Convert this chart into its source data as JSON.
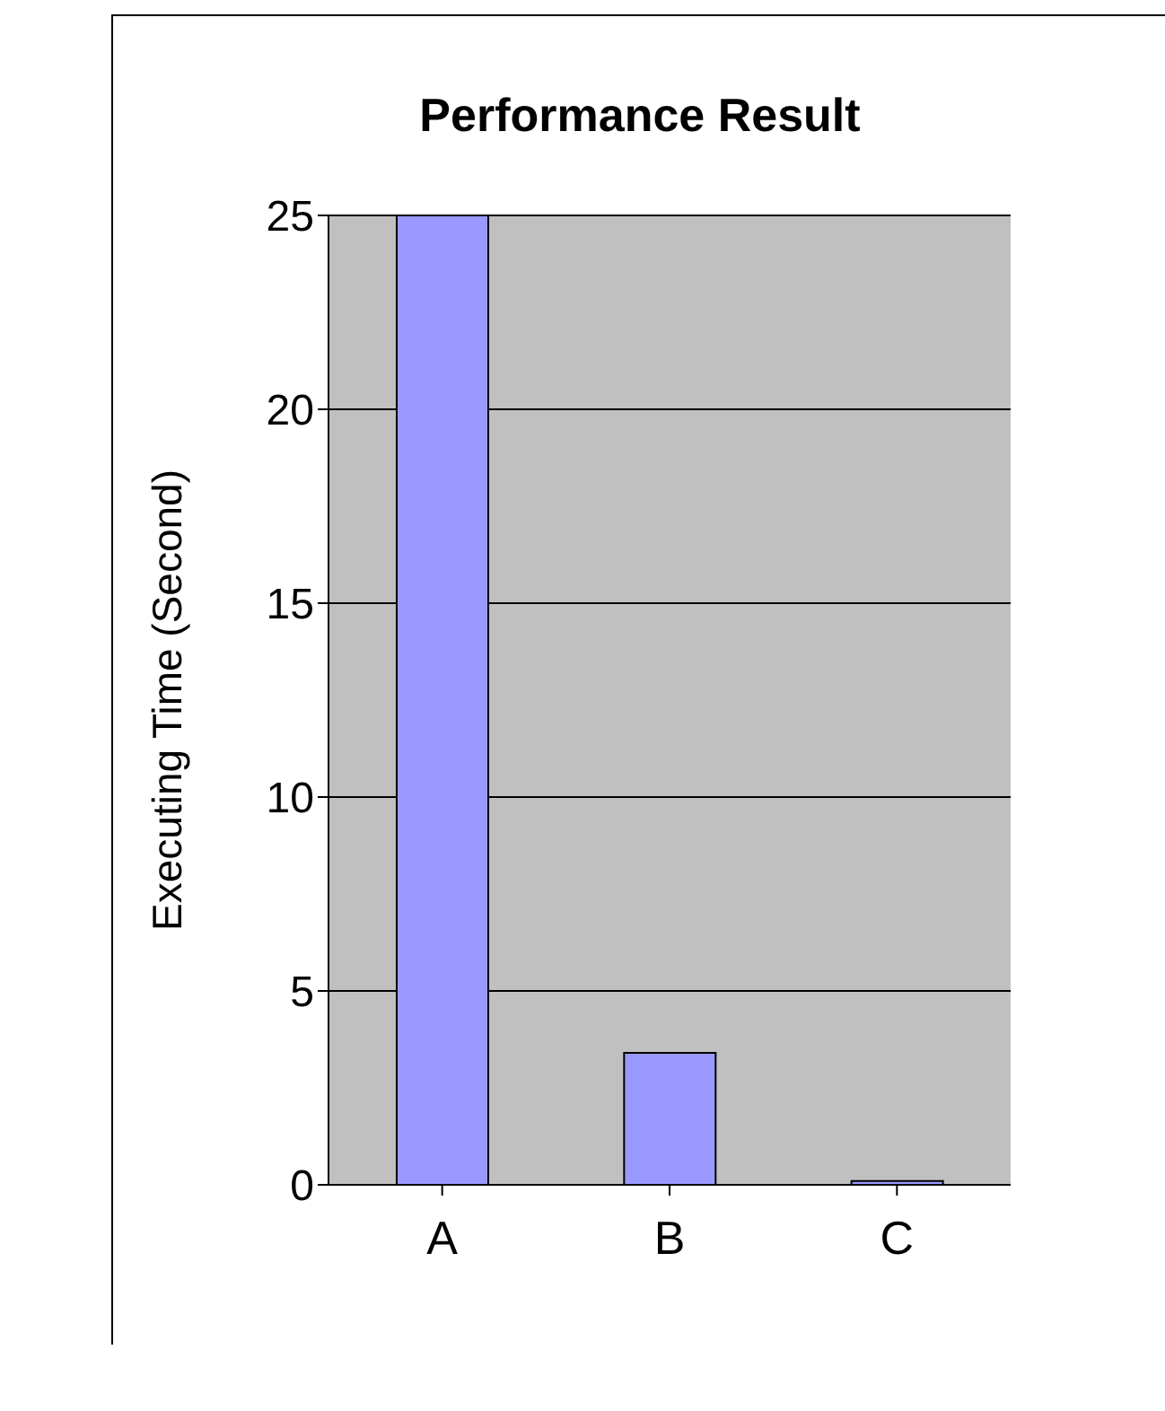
{
  "chart_data": {
    "type": "bar",
    "title": "Performance Result",
    "ylabel": "Executing Time (Second)",
    "categories": [
      "A",
      "B",
      "C"
    ],
    "series": [
      {
        "color": "#9999ff",
        "values": [
          25,
          3.4,
          0.1
        ]
      }
    ],
    "ylim": [
      0,
      25
    ],
    "yticks": [
      0,
      5,
      10,
      15,
      20,
      25
    ],
    "grid": "y"
  }
}
